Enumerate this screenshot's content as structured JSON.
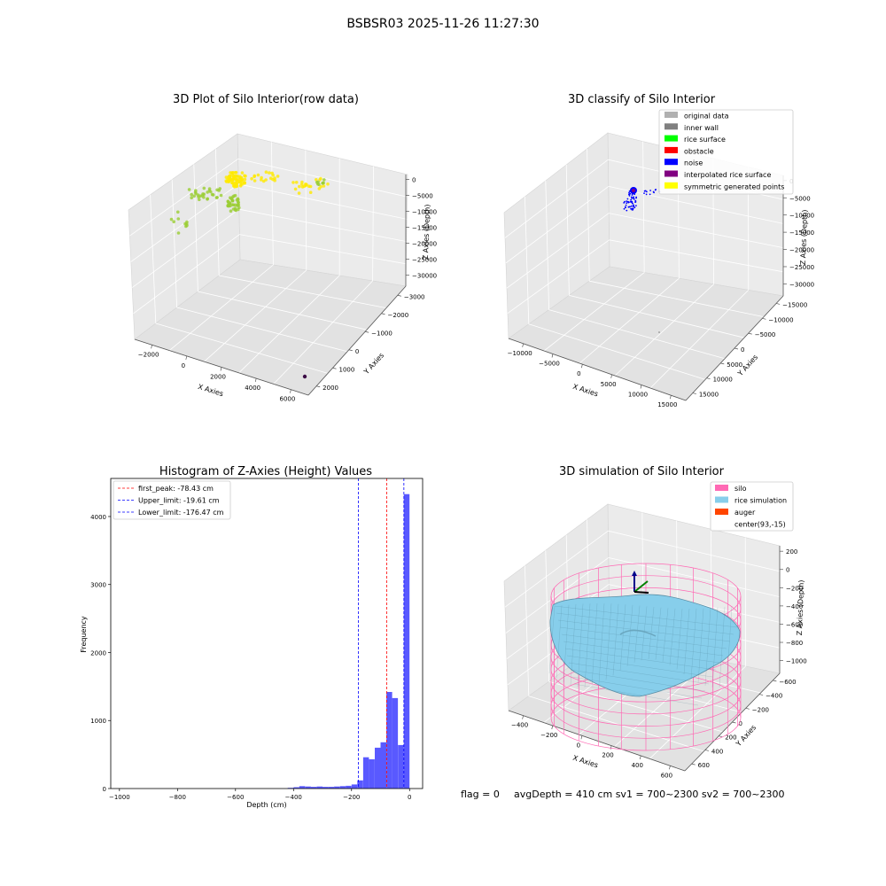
{
  "figure": {
    "suptitle": "BSBSR03 2025-11-26 11:27:30"
  },
  "footer": {
    "flag": "flag = 0",
    "stats": "avgDepth = 410 cm  sv1 = 700~2300  sv2 = 700~2300"
  },
  "colors": {
    "rice_surface": "#9ACD32",
    "symmetric": "#FFEA00",
    "noise": "#0000FF",
    "hist_bar": "#5050FF",
    "peak_line": "#FF0000",
    "limit_line": "#0000FF",
    "silo": "#FF69B4",
    "rice_sim": "#87CEEB",
    "auger": "#FF4500"
  },
  "chart_data": [
    {
      "type": "scatter",
      "title": "3D Plot of Silo Interior(row data)",
      "xlabel": "X Axies",
      "ylabel": "Y Axies",
      "zlabel": "Z Axies (Depth)",
      "x_ticks": [
        "−2000",
        "0",
        "2000",
        "4000",
        "6000"
      ],
      "y_ticks": [
        "2000",
        "1000",
        "0",
        "−1000",
        "−2000",
        "−3000"
      ],
      "z_ticks": [
        "0",
        "−5000",
        "−10000",
        "−15000",
        "−20000",
        "−25000",
        "−30000"
      ],
      "clusters": [
        {
          "name": "rice surface",
          "points": 120
        },
        {
          "name": "symmetric generated points",
          "points": 90
        }
      ]
    },
    {
      "type": "scatter",
      "title": "3D classify of Silo Interior",
      "xlabel": "X Axies",
      "ylabel": "Y Axies",
      "zlabel": "Z Axies (Depth)",
      "x_ticks": [
        "−10000",
        "−5000",
        "0",
        "5000",
        "10000",
        "15000"
      ],
      "y_ticks": [
        "15000",
        "10000",
        "5000",
        "0",
        "−5000",
        "−10000",
        "−15000"
      ],
      "z_ticks": [
        "0",
        "−5000",
        "−10000",
        "−15000",
        "−20000",
        "−25000",
        "−30000"
      ],
      "legend": [
        {
          "label": "original data",
          "color": "#B0B0B0"
        },
        {
          "label": "inner wall",
          "color": "#808080"
        },
        {
          "label": "rice surface",
          "color": "#00FF00"
        },
        {
          "label": "obstacle",
          "color": "#FF0000"
        },
        {
          "label": "noise",
          "color": "#0000FF"
        },
        {
          "label": "interpolated rice surface",
          "color": "#800080"
        },
        {
          "label": "symmetric generated points",
          "color": "#FFFF00"
        }
      ]
    },
    {
      "type": "bar",
      "title": "Histogram of Z-Axies (Height) Values",
      "xlabel": "Depth (cm)",
      "ylabel": "Frequency",
      "xlim": [
        -1030,
        45
      ],
      "ylim": [
        0,
        4560
      ],
      "x_ticks": [
        "−1000",
        "−800",
        "−600",
        "−400",
        "−200",
        "0"
      ],
      "y_ticks": [
        "0",
        "1000",
        "2000",
        "3000",
        "4000"
      ],
      "bin_width": 20,
      "bins": [
        {
          "x": -420,
          "value": 10
        },
        {
          "x": -400,
          "value": 20
        },
        {
          "x": -380,
          "value": 35
        },
        {
          "x": -360,
          "value": 30
        },
        {
          "x": -340,
          "value": 25
        },
        {
          "x": -320,
          "value": 30
        },
        {
          "x": -300,
          "value": 25
        },
        {
          "x": -280,
          "value": 25
        },
        {
          "x": -260,
          "value": 30
        },
        {
          "x": -240,
          "value": 35
        },
        {
          "x": -220,
          "value": 40
        },
        {
          "x": -200,
          "value": 60
        },
        {
          "x": -180,
          "value": 120
        },
        {
          "x": -160,
          "value": 460
        },
        {
          "x": -140,
          "value": 430
        },
        {
          "x": -120,
          "value": 600
        },
        {
          "x": -100,
          "value": 680
        },
        {
          "x": -80,
          "value": 1420
        },
        {
          "x": -60,
          "value": 1330
        },
        {
          "x": -40,
          "value": 640
        },
        {
          "x": -20,
          "value": 4330
        }
      ],
      "lines": [
        {
          "label": "first_peak: -78.43 cm",
          "x": -78.43,
          "kind": "peak"
        },
        {
          "label": "Upper_limit: -19.61 cm",
          "x": -19.61,
          "kind": "limit"
        },
        {
          "label": "Lower_limit: -176.47 cm",
          "x": -176.47,
          "kind": "limit"
        }
      ]
    },
    {
      "type": "surface",
      "title": "3D simulation of Silo Interior",
      "xlabel": "X Axies",
      "ylabel": "Y Axies",
      "zlabel": "Z Axies (Depth)",
      "x_ticks": [
        "−400",
        "−200",
        "0",
        "200",
        "400",
        "600"
      ],
      "y_ticks": [
        "600",
        "400",
        "200",
        "0",
        "−200",
        "−400",
        "−600"
      ],
      "z_ticks": [
        "200",
        "0",
        "−200",
        "−400",
        "−600",
        "−800",
        "−1000"
      ],
      "legend": [
        {
          "label": "silo",
          "color": "#FF69B4"
        },
        {
          "label": "rice simulation",
          "color": "#87CEEB"
        },
        {
          "label": "auger",
          "color": "#FF4500"
        },
        {
          "label": "center(93,-15)",
          "color": "none"
        }
      ]
    }
  ]
}
